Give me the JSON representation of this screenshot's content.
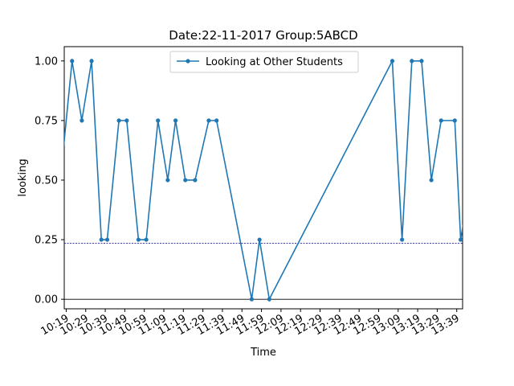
{
  "chart_data": {
    "type": "line",
    "title": "Date:22-11-2017  Group:5ABCD",
    "xlabel": "Time",
    "ylabel": "looking",
    "ylim": [
      -0.04,
      1.06
    ],
    "xlim_minutes": [
      618,
      822
    ],
    "y_ticks": [
      0.0,
      0.25,
      0.5,
      0.75,
      1.0
    ],
    "y_tick_labels": [
      "0.00",
      "0.25",
      "0.50",
      "0.75",
      "1.00"
    ],
    "x_ticks": [
      "10:19",
      "10:29",
      "10:39",
      "10:49",
      "10:59",
      "11:09",
      "11:19",
      "11:29",
      "11:39",
      "11:49",
      "11:59",
      "12:09",
      "12:19",
      "12:29",
      "12:39",
      "12:49",
      "12:59",
      "13:09",
      "13:19",
      "13:29",
      "13:39"
    ],
    "legend_position": "upper center",
    "grid": false,
    "reference_lines": [
      {
        "y": 0.235,
        "style": "dashed",
        "color": "#00008b"
      },
      {
        "y": 0.0,
        "style": "solid",
        "color": "#000000"
      }
    ],
    "series": [
      {
        "name": "Looking at Other Students",
        "color": "#1f77b4",
        "x": [
          "10:16",
          "10:22",
          "10:27",
          "10:32",
          "10:37",
          "10:40",
          "10:46",
          "10:50",
          "10:56",
          "11:00",
          "11:06",
          "11:11",
          "11:15",
          "11:20",
          "11:25",
          "11:32",
          "11:36",
          "11:54",
          "11:58",
          "12:03",
          "13:06",
          "13:11",
          "13:16",
          "13:21",
          "13:26",
          "13:31",
          "13:38",
          "13:41",
          "13:46"
        ],
        "values": [
          0.5,
          1.0,
          0.75,
          1.0,
          0.25,
          0.25,
          0.75,
          0.75,
          0.25,
          0.25,
          0.75,
          0.5,
          0.75,
          0.5,
          0.5,
          0.75,
          0.75,
          0.0,
          0.25,
          0.0,
          1.0,
          0.25,
          1.0,
          1.0,
          0.5,
          0.75,
          0.75,
          0.25,
          0.5
        ]
      }
    ]
  }
}
